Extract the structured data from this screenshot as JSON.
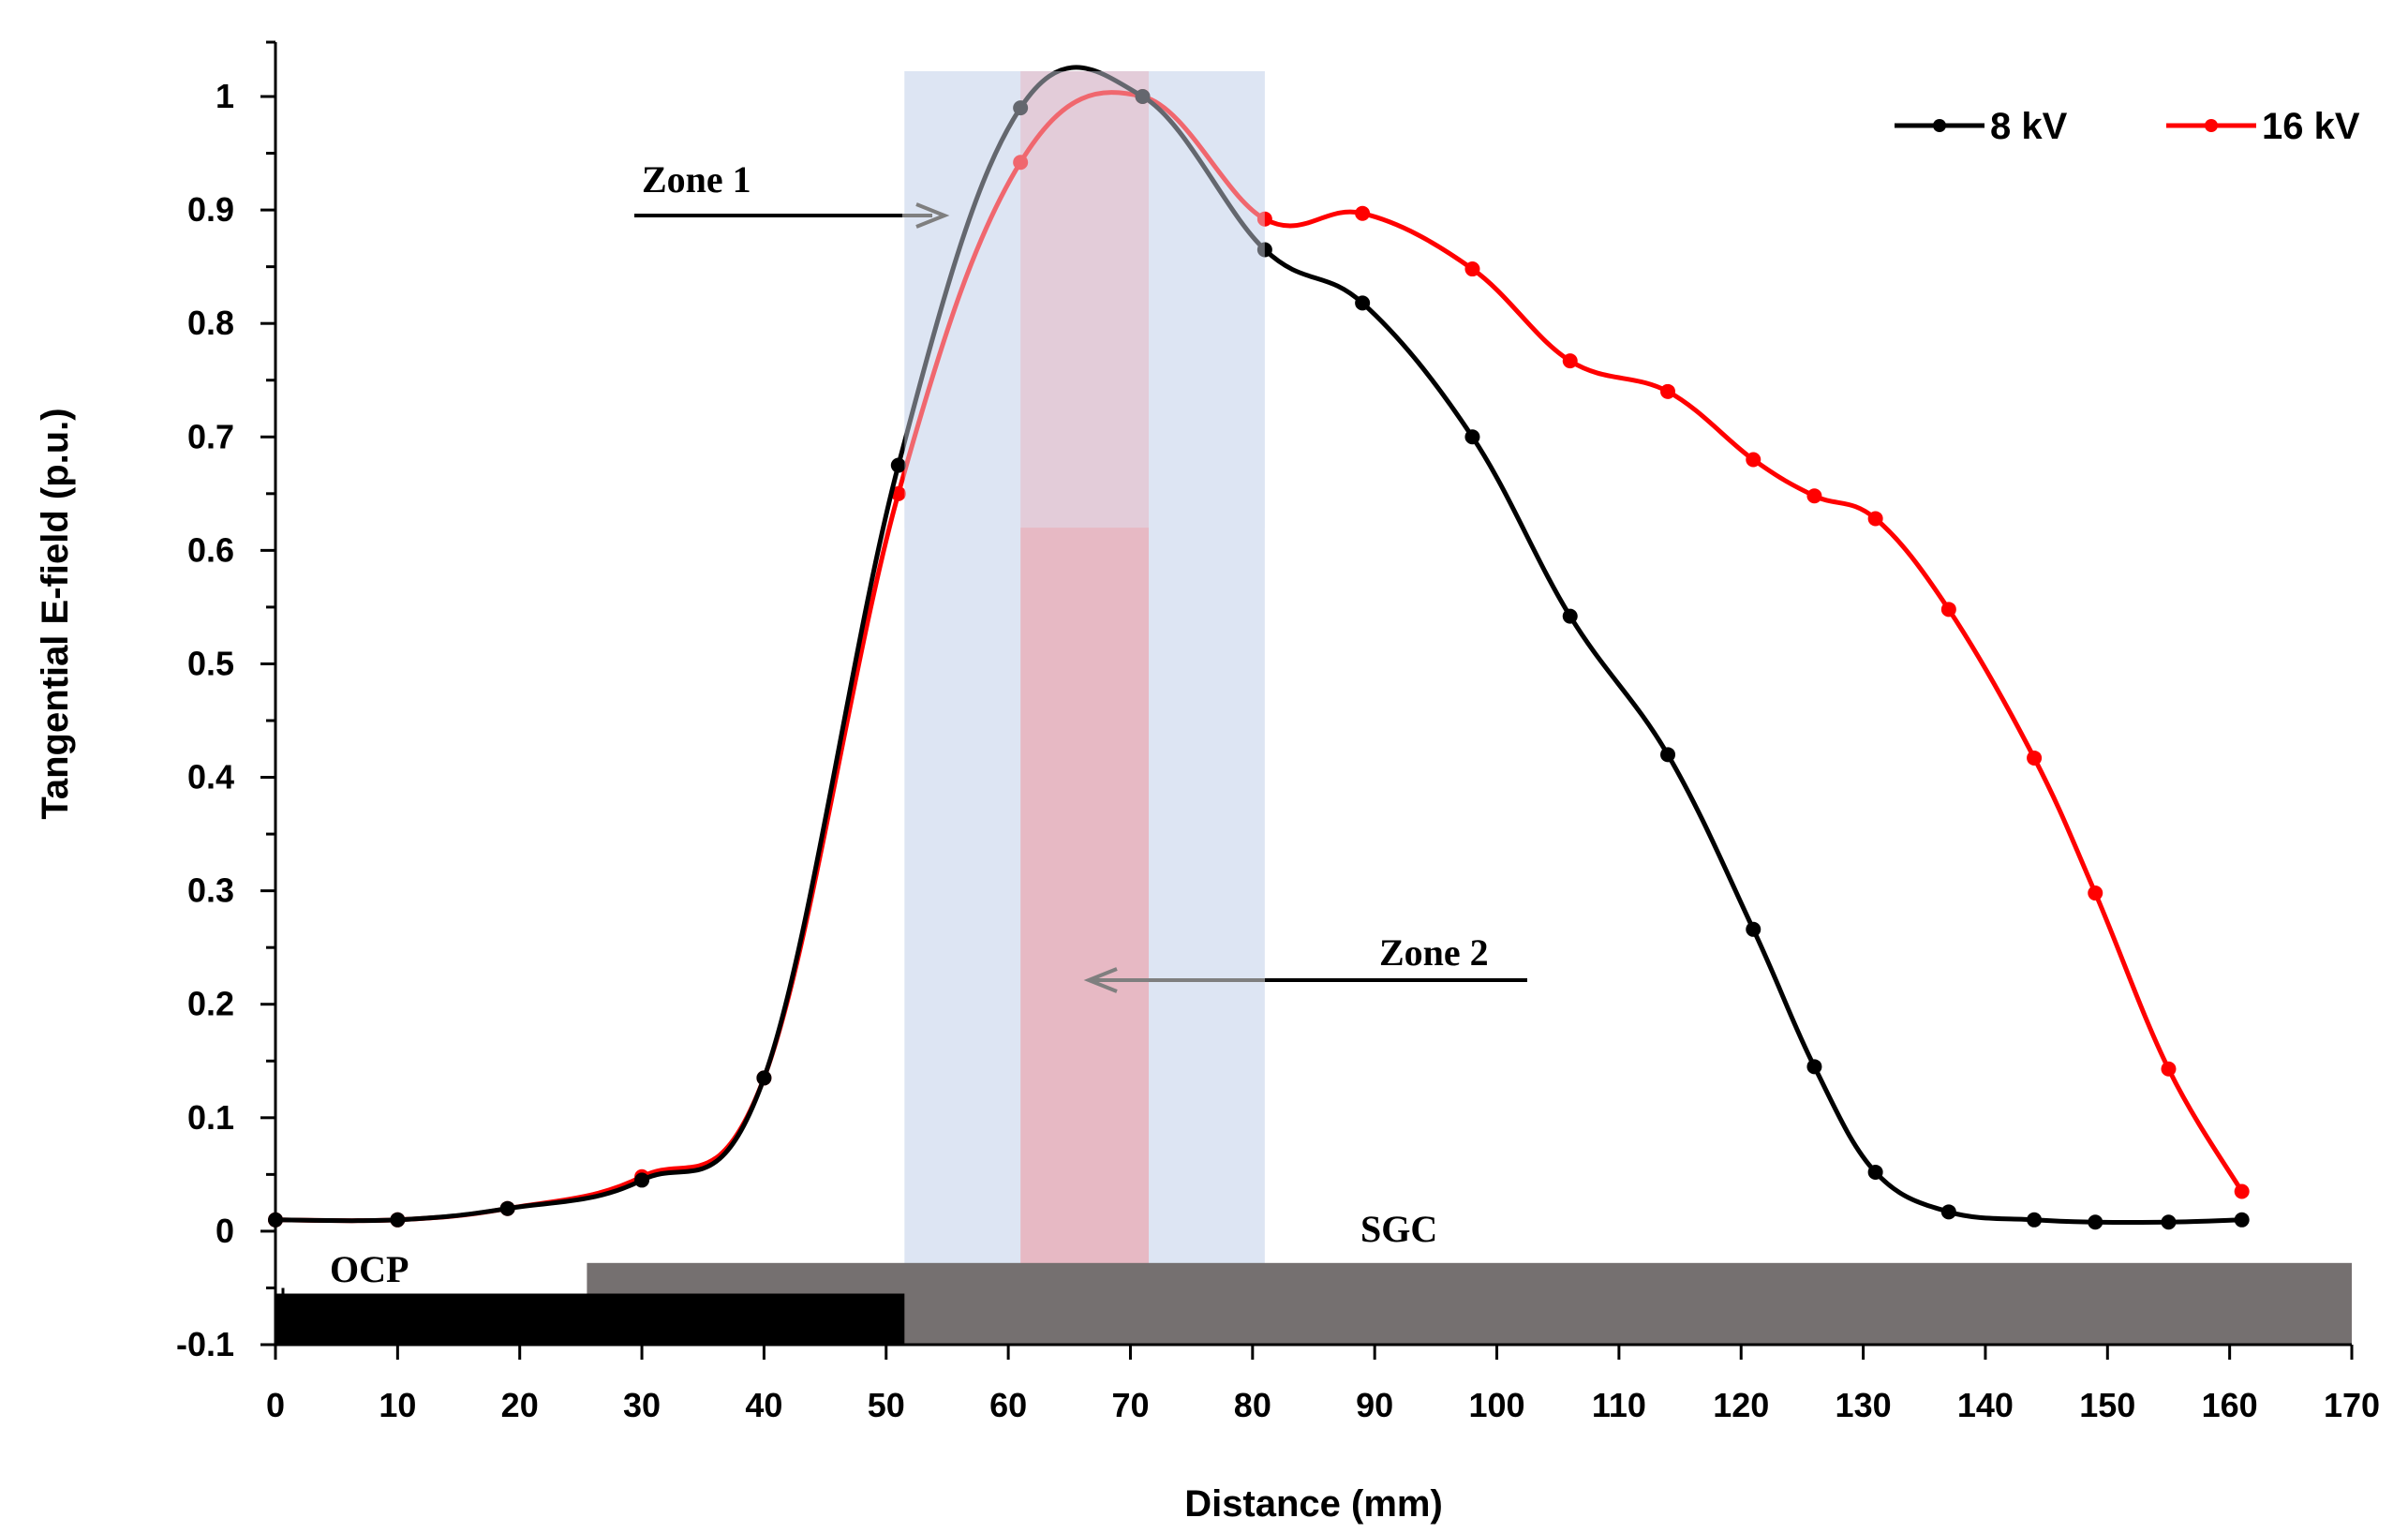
{
  "chart_data": {
    "type": "line",
    "title": "",
    "xlabel": "Distance (mm)",
    "ylabel": "Tangential E-field (p.u.)",
    "xlim": [
      0,
      170
    ],
    "ylim": [
      -0.1,
      1.0
    ],
    "xticks": [
      "0",
      "10",
      "20",
      "30",
      "40",
      "50",
      "60",
      "70",
      "80",
      "90",
      "100",
      "110",
      "120",
      "130",
      "140",
      "150",
      "160",
      "170"
    ],
    "yticks": [
      "-0.1",
      "0",
      "0.1",
      "0.2",
      "0.3",
      "0.4",
      "0.5",
      "0.6",
      "0.7",
      "0.8",
      "0.9",
      "1"
    ],
    "grid": false,
    "legend_position": "top-right",
    "series": [
      {
        "name": "8 kV",
        "color": "#000000",
        "x": [
          0,
          10,
          19,
          30,
          40,
          51,
          61,
          71,
          81,
          89,
          98,
          106,
          114,
          121,
          126,
          131,
          137,
          144,
          149,
          155,
          161
        ],
        "y": [
          0.01,
          0.01,
          0.02,
          0.045,
          0.135,
          0.675,
          0.99,
          1.0,
          0.865,
          0.818,
          0.7,
          0.542,
          0.42,
          0.266,
          0.145,
          0.052,
          0.017,
          0.01,
          0.008,
          0.008,
          0.01
        ]
      },
      {
        "name": "16 kV",
        "color": "#ff0000",
        "x": [
          0,
          10,
          19,
          30,
          40,
          51,
          61,
          71,
          81,
          89,
          98,
          106,
          114,
          121,
          126,
          131,
          137,
          144,
          149,
          155,
          161
        ],
        "y": [
          0.01,
          0.01,
          0.02,
          0.048,
          0.135,
          0.65,
          0.942,
          1.0,
          0.892,
          0.897,
          0.848,
          0.767,
          0.74,
          0.68,
          0.648,
          0.628,
          0.548,
          0.417,
          0.298,
          0.143,
          0.035
        ]
      }
    ],
    "regions": [
      {
        "name": "Zone 1 band",
        "x_range": [
          51.5,
          81
        ],
        "color": "#dde5f3"
      },
      {
        "name": "Zone 2 band",
        "x_range": [
          61,
          71.5
        ],
        "color": "#e8b4bf"
      }
    ],
    "bars": [
      {
        "name": "SGC",
        "x_range": [
          25.5,
          170
        ],
        "y_range": [
          -0.1,
          -0.028
        ],
        "color": "#757070"
      },
      {
        "name": "OCP",
        "x_range": [
          0,
          51.5
        ],
        "y_range": [
          -0.1,
          -0.055
        ],
        "color": "#000000"
      }
    ],
    "annotations": [
      {
        "text": "Zone 1",
        "x": 36,
        "y": 0.9,
        "arrow_to_x": 55
      },
      {
        "text": "Zone 2",
        "x": 101,
        "y": 0.21,
        "arrow_to_x": 66
      },
      {
        "text": "OCP",
        "x": 9,
        "y": -0.035
      },
      {
        "text": "SGC",
        "x": 92,
        "y": 0.0
      }
    ]
  }
}
